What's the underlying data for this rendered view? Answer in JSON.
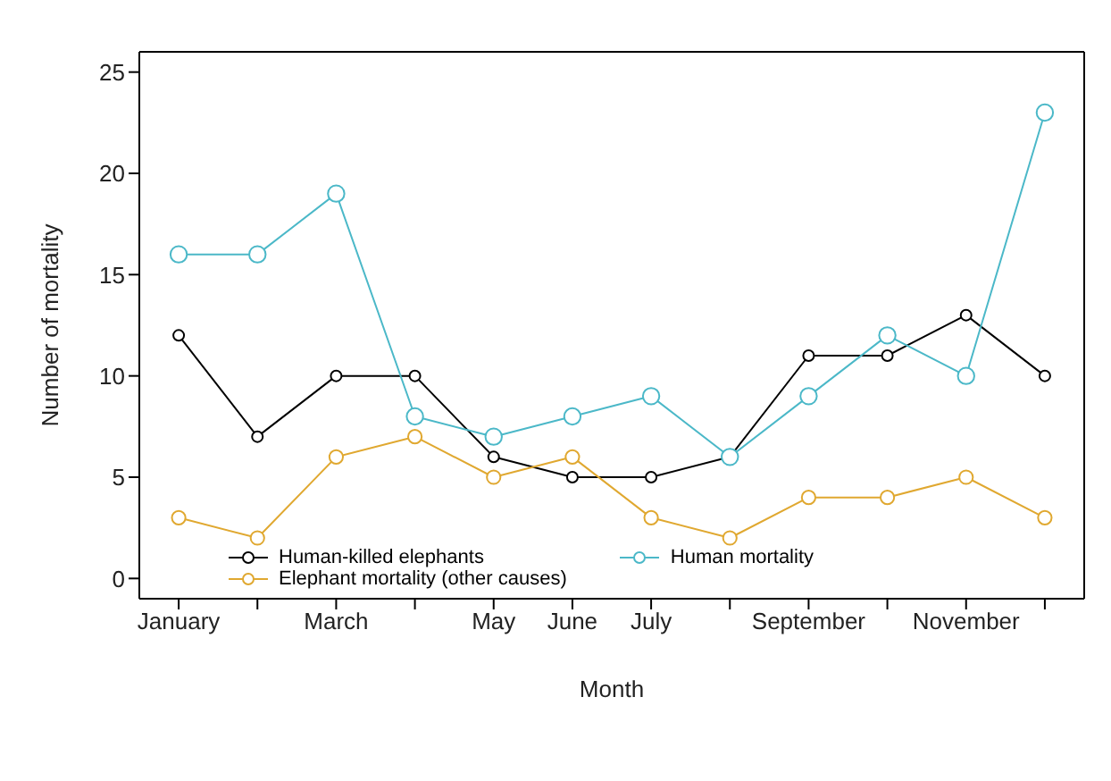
{
  "chart_data": {
    "type": "line",
    "xlabel": "Month",
    "ylabel": "Number of mortality",
    "categories": [
      "January",
      null,
      "March",
      null,
      "May",
      "June",
      "July",
      null,
      "September",
      null,
      "November",
      null
    ],
    "series": [
      {
        "name": "Human mortality",
        "color": "#4bb8c8",
        "values": [
          16,
          16,
          19,
          8,
          7,
          8,
          9,
          6,
          9,
          12,
          10,
          23
        ]
      },
      {
        "name": "Elephant mortality (other causes)",
        "color": "#e0a830",
        "values": [
          3,
          2,
          6,
          7,
          5,
          6,
          3,
          2,
          4,
          4,
          5,
          3
        ]
      },
      {
        "name": "Human-killed elephants",
        "color": "#000000",
        "values": [
          12,
          7,
          10,
          10,
          6,
          5,
          5,
          6,
          11,
          11,
          13,
          10
        ]
      }
    ],
    "ylim": [
      -1,
      26
    ],
    "yticks": [
      0,
      5,
      10,
      15,
      20,
      25
    ],
    "grid": false,
    "legend": "bottom left",
    "marker": "circle",
    "line_style": "solid"
  }
}
